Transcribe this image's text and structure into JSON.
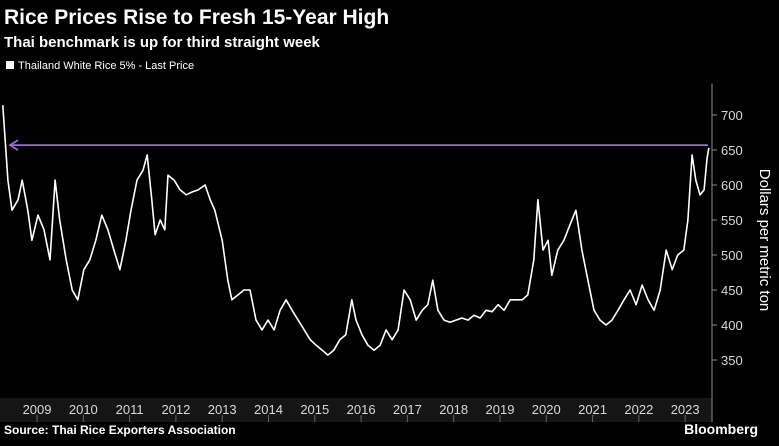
{
  "chart_data": {
    "type": "line",
    "title": "Rice Prices Rise to Fresh 15-Year High",
    "subtitle": "Thai benchmark is up for third straight week",
    "ylabel": "Dollars per metric ton",
    "source": "Source: Thai Rice Exporters Association",
    "brand": "Bloomberg",
    "x": [
      2008.76,
      2008.87,
      2008.96,
      2009.09,
      2009.18,
      2009.3,
      2009.39,
      2009.52,
      2009.65,
      2009.78,
      2009.89,
      2009.99,
      2010.13,
      2010.26,
      2010.38,
      2010.51,
      2010.64,
      2010.77,
      2010.9,
      2011.03,
      2011.16,
      2011.29,
      2011.42,
      2011.53,
      2011.66,
      2011.79,
      2011.88,
      2011.98,
      2012.05,
      2012.16,
      2012.26,
      2012.33,
      2012.46,
      2012.59,
      2012.72,
      2012.85,
      2012.98,
      2013.13,
      2013.24,
      2013.34,
      2013.5,
      2013.62,
      2013.71,
      2013.84,
      2013.97,
      2014.1,
      2014.23,
      2014.36,
      2014.49,
      2014.62,
      2014.75,
      2014.88,
      2015.01,
      2015.14,
      2015.27,
      2015.4,
      2015.53,
      2015.66,
      2015.78,
      2015.91,
      2016.04,
      2016.17,
      2016.3,
      2016.39,
      2016.52,
      2016.65,
      2016.78,
      2016.91,
      2017.04,
      2017.17,
      2017.3,
      2017.43,
      2017.56,
      2017.69,
      2017.82,
      2017.94,
      2018.05,
      2018.16,
      2018.29,
      2018.42,
      2018.55,
      2018.68,
      2018.81,
      2018.94,
      2019.07,
      2019.2,
      2019.33,
      2019.46,
      2019.59,
      2019.72,
      2019.85,
      2019.98,
      2020.1,
      2020.23,
      2020.32,
      2020.43,
      2020.54,
      2020.62,
      2020.75,
      2020.88,
      2021.01,
      2021.14,
      2021.27,
      2021.4,
      2021.53,
      2021.66,
      2021.79,
      2021.92,
      2022.05,
      2022.18,
      2022.31,
      2022.44,
      2022.57,
      2022.7,
      2022.83,
      2022.96,
      2023.09,
      2023.22,
      2023.34,
      2023.47,
      2023.56,
      2023.65,
      2023.73,
      2023.82,
      2023.91,
      2023.97,
      2024.01
    ],
    "series": [
      {
        "name": "Thailand White Rice 5% - Last Price",
        "color": "#ffffff",
        "values": [
          714,
          607,
          564,
          579,
          607,
          564,
          521,
          557,
          536,
          493,
          607,
          550,
          493,
          450,
          436,
          479,
          493,
          521,
          557,
          536,
          507,
          479,
          521,
          564,
          607,
          621,
          643,
          579,
          529,
          550,
          536,
          614,
          607,
          593,
          586,
          590,
          593,
          600,
          579,
          564,
          521,
          464,
          436,
          443,
          450,
          450,
          407,
          393,
          407,
          393,
          421,
          436,
          421,
          407,
          393,
          379,
          371,
          364,
          357,
          364,
          379,
          386,
          436,
          407,
          386,
          371,
          364,
          371,
          393,
          379,
          393,
          450,
          436,
          407,
          421,
          429,
          464,
          421,
          407,
          404,
          407,
          410,
          407,
          414,
          410,
          421,
          419,
          429,
          421,
          436,
          436,
          436,
          443,
          493,
          579,
          507,
          521,
          471,
          507,
          521,
          543,
          564,
          507,
          464,
          421,
          407,
          400,
          407,
          421,
          436,
          450,
          429,
          457,
          436,
          421,
          450,
          507,
          479,
          500,
          507,
          550,
          643,
          607,
          586,
          593,
          636,
          653
        ]
      }
    ],
    "hline": {
      "value": 657,
      "color": "#9b6bd6"
    },
    "xlim": [
      2008.7,
      2024.08
    ],
    "xticks": [
      {
        "value": 2009.5,
        "label": "2009"
      },
      {
        "value": 2010.5,
        "label": "2010"
      },
      {
        "value": 2011.5,
        "label": "2011"
      },
      {
        "value": 2012.5,
        "label": "2012"
      },
      {
        "value": 2013.5,
        "label": "2013"
      },
      {
        "value": 2014.5,
        "label": "2014"
      },
      {
        "value": 2015.5,
        "label": "2015"
      },
      {
        "value": 2016.5,
        "label": "2016"
      },
      {
        "value": 2017.5,
        "label": "2017"
      },
      {
        "value": 2018.5,
        "label": "2018"
      },
      {
        "value": 2019.5,
        "label": "2019"
      },
      {
        "value": 2020.5,
        "label": "2020"
      },
      {
        "value": 2021.5,
        "label": "2021"
      },
      {
        "value": 2022.5,
        "label": "2022"
      },
      {
        "value": 2023.5,
        "label": "2023"
      }
    ],
    "ylim": [
      300,
      745
    ],
    "yticks": [
      350,
      400,
      450,
      500,
      550,
      600,
      650,
      700
    ]
  }
}
